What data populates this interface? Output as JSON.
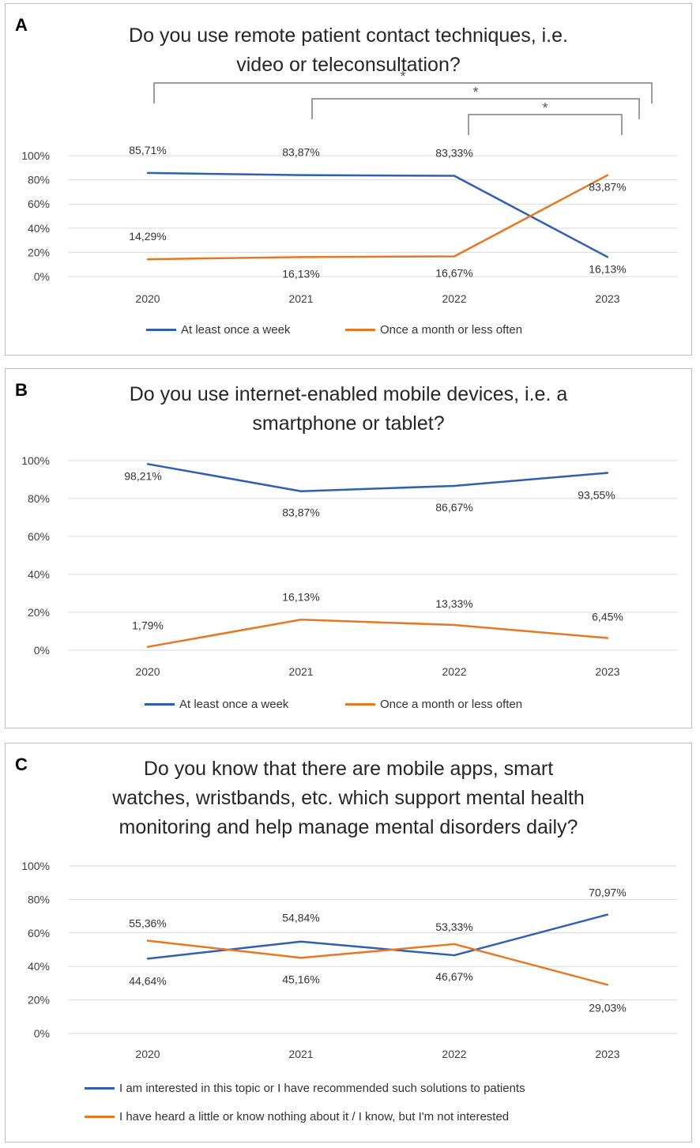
{
  "chart_data": [
    {
      "id": "A",
      "type": "line",
      "panel_label": "A",
      "title_lines": [
        "Do you use remote patient contact techniques, i.e.",
        "video or teleconsultation?"
      ],
      "categories": [
        "2020",
        "2021",
        "2022",
        "2023"
      ],
      "y_ticks": [
        "0%",
        "20%",
        "40%",
        "60%",
        "80%",
        "100%"
      ],
      "ylim": [
        0,
        100
      ],
      "series": [
        {
          "name": "At least once a week",
          "color": "#2e5fb5",
          "values": [
            85.71,
            83.87,
            83.33,
            16.13
          ],
          "labels": [
            "85,71%",
            "83,87%",
            "83,33%",
            "16,13%"
          ]
        },
        {
          "name": "Once a month or less often",
          "color": "#e87722",
          "values": [
            14.29,
            16.13,
            16.67,
            83.87
          ],
          "labels": [
            "14,29%",
            "16,13%",
            "16,67%",
            "83,87%"
          ]
        }
      ],
      "significance": [
        {
          "from": "2020",
          "to": "2023",
          "mark": "*"
        },
        {
          "from": "2021",
          "to": "2023",
          "mark": "*"
        },
        {
          "from": "2022",
          "to": "2023",
          "mark": "*"
        }
      ]
    },
    {
      "id": "B",
      "type": "line",
      "panel_label": "B",
      "title_lines": [
        "Do you use internet-enabled mobile devices, i.e. a",
        "smartphone or tablet?"
      ],
      "categories": [
        "2020",
        "2021",
        "2022",
        "2023"
      ],
      "y_ticks": [
        "0%",
        "20%",
        "40%",
        "60%",
        "80%",
        "100%"
      ],
      "ylim": [
        0,
        100
      ],
      "series": [
        {
          "name": "At least once a week",
          "color": "#2e5fb5",
          "values": [
            98.21,
            83.87,
            86.67,
            93.55
          ],
          "labels": [
            "98,21%",
            "83,87%",
            "86,67%",
            "93,55%"
          ]
        },
        {
          "name": "Once a month or less often",
          "color": "#e87722",
          "values": [
            1.79,
            16.13,
            13.33,
            6.45
          ],
          "labels": [
            "1,79%",
            "16,13%",
            "13,33%",
            "6,45%"
          ]
        }
      ]
    },
    {
      "id": "C",
      "type": "line",
      "panel_label": "C",
      "title_lines": [
        "Do you know that there are mobile apps, smart",
        "watches, wristbands, etc. which support mental health",
        "monitoring and help manage mental disorders daily?"
      ],
      "categories": [
        "2020",
        "2021",
        "2022",
        "2023"
      ],
      "y_ticks": [
        "0%",
        "20%",
        "40%",
        "60%",
        "80%",
        "100%"
      ],
      "ylim": [
        0,
        100
      ],
      "series": [
        {
          "name": "I am interested in this topic or I have recommended such solutions to patients",
          "color": "#2e5fb5",
          "values": [
            44.64,
            54.84,
            46.67,
            70.97
          ],
          "labels": [
            "44,64%",
            "54,84%",
            "46,67%",
            "70,97%"
          ]
        },
        {
          "name": "I have heard a little or know nothing about it / I know, but I'm not interested",
          "color": "#e87722",
          "values": [
            55.36,
            45.16,
            53.33,
            29.03
          ],
          "labels": [
            "55,36%",
            "45,16%",
            "53,33%",
            "29,03%"
          ]
        }
      ]
    }
  ]
}
